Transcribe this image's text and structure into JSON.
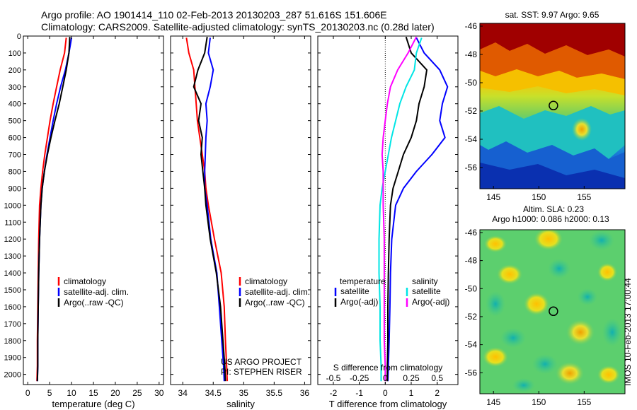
{
  "header": {
    "line1": "Argo profile: AO 1901414_110 02-Feb-2013 20130203_287 51.616S 151.606E",
    "line2": "Climatology: CARS2009. Satellite-adjusted climatology: synTS_20130203.nc (0.28d later)"
  },
  "colors": {
    "climatology": "#ff0000",
    "satellite": "#0000ff",
    "argo": "#000000",
    "sat_diff_temp": "#00e5e5",
    "argo_diff_sal": "#ff00ff"
  },
  "project_note": {
    "line1": "US ARGO PROJECT",
    "line2": "PI: STEPHEN RISER"
  },
  "side_label": "IMOS 10-Feb-2013 17:00:44",
  "chart_data": [
    {
      "type": "line",
      "id": "temperature",
      "xlabel": "temperature (deg C)",
      "ylabel": "",
      "xlim": [
        -1,
        31
      ],
      "ylim": [
        0,
        2060
      ],
      "y_reversed": true,
      "x_ticks": [
        0,
        5,
        10,
        15,
        20,
        25,
        30
      ],
      "y_ticks": [
        0,
        100,
        200,
        300,
        400,
        500,
        600,
        700,
        800,
        900,
        1000,
        1100,
        1200,
        1300,
        1400,
        1500,
        1600,
        1700,
        1800,
        1900,
        2000
      ],
      "legend": [
        "climatology",
        "satellite-adj. clim.",
        "Argo(..raw -QC)"
      ],
      "series": [
        {
          "name": "climatology",
          "color": "#ff0000",
          "x": [
            8.8,
            8.4,
            7.4,
            6.6,
            5.8,
            5.1,
            4.5,
            3.9,
            3.4,
            3.0,
            2.7,
            2.5,
            2.4,
            2.3,
            2.2,
            2.2,
            2.1
          ],
          "y": [
            10,
            100,
            200,
            300,
            400,
            500,
            600,
            700,
            800,
            900,
            1000,
            1200,
            1400,
            1600,
            1800,
            1950,
            2040
          ]
        },
        {
          "name": "satellite-adj. clim.",
          "color": "#0000ff",
          "x": [
            10.0,
            9.4,
            8.6,
            7.5,
            6.6,
            5.8,
            5.1,
            4.4,
            3.8,
            3.3,
            3.0,
            2.7,
            2.5,
            2.4,
            2.3,
            2.3,
            2.2
          ],
          "y": [
            10,
            100,
            200,
            300,
            400,
            500,
            600,
            700,
            800,
            900,
            1000,
            1200,
            1400,
            1600,
            1800,
            1950,
            2040
          ]
        },
        {
          "name": "Argo(..raw -QC)",
          "color": "#000000",
          "x": [
            9.6,
            9.4,
            8.8,
            8.0,
            7.2,
            6.2,
            5.3,
            4.5,
            3.8,
            3.3,
            3.0,
            2.7,
            2.5,
            2.4,
            2.3,
            2.3,
            2.2
          ],
          "y": [
            5,
            100,
            200,
            300,
            400,
            500,
            600,
            700,
            800,
            900,
            1000,
            1200,
            1400,
            1600,
            1800,
            1950,
            2040
          ]
        }
      ]
    },
    {
      "type": "line",
      "id": "salinity",
      "xlabel": "salinity",
      "ylabel": "",
      "xlim": [
        33.8,
        36.1
      ],
      "ylim": [
        0,
        2060
      ],
      "y_reversed": true,
      "x_ticks": [
        34,
        34.5,
        35,
        35.5,
        36
      ],
      "x_tick_labels": [
        "34",
        "34.5",
        "35",
        "35.5",
        "36"
      ],
      "legend": [
        "climatology",
        "satellite-adj. clim.",
        "Argo(..raw -QC)"
      ],
      "series": [
        {
          "name": "climatology",
          "color": "#ff0000",
          "x": [
            34.06,
            34.1,
            34.18,
            34.2,
            34.22,
            34.24,
            34.28,
            34.32,
            34.36,
            34.38,
            34.42,
            34.52,
            34.63,
            34.68,
            34.7,
            34.72,
            34.73
          ],
          "y": [
            10,
            100,
            200,
            300,
            400,
            500,
            600,
            700,
            800,
            900,
            1000,
            1200,
            1400,
            1600,
            1800,
            1950,
            2040
          ]
        },
        {
          "name": "satellite-adj. clim.",
          "color": "#0000ff",
          "x": [
            34.45,
            34.42,
            34.5,
            34.45,
            34.38,
            34.4,
            34.38,
            34.37,
            34.36,
            34.36,
            34.4,
            34.46,
            34.56,
            34.6,
            34.64,
            34.67,
            34.68
          ],
          "y": [
            10,
            100,
            200,
            300,
            400,
            500,
            600,
            700,
            800,
            900,
            1000,
            1200,
            1400,
            1600,
            1800,
            1950,
            2040
          ]
        },
        {
          "name": "Argo(..raw -QC)",
          "color": "#000000",
          "x": [
            34.4,
            34.36,
            34.25,
            34.18,
            34.3,
            34.26,
            34.32,
            34.3,
            34.33,
            34.36,
            34.38,
            34.45,
            34.55,
            34.62,
            34.66,
            34.69,
            34.7
          ],
          "y": [
            5,
            100,
            200,
            300,
            400,
            500,
            600,
            700,
            800,
            900,
            1000,
            1200,
            1400,
            1600,
            1800,
            1950,
            2040
          ]
        }
      ]
    },
    {
      "type": "line",
      "id": "differences",
      "xlabel": "T difference from climatology",
      "xlim": [
        -2.6,
        2.8
      ],
      "x_ticks": [
        -2,
        -1,
        0,
        1,
        2
      ],
      "x2label": "S difference from climatology",
      "x2lim": [
        -0.65,
        0.7
      ],
      "x2_ticks": [
        -0.5,
        -0.25,
        0,
        0.25,
        0.5
      ],
      "x2_tick_labels": [
        "-0.5",
        "-0.25",
        "0",
        "0.25",
        "0.5"
      ],
      "ylim": [
        0,
        2060
      ],
      "y_reversed": true,
      "legend_titles": [
        "temperature",
        "salinity"
      ],
      "legend": [
        "satellite",
        "Argo(-adj)",
        "satellite",
        "Argo(-adj)"
      ],
      "series": [
        {
          "name": "satellite",
          "group": "temperature",
          "color": "#0000ff",
          "x": [
            1.2,
            1.5,
            2.1,
            2.4,
            2.2,
            2.1,
            2.3,
            1.8,
            1.2,
            0.7,
            0.4,
            0.25,
            0.2,
            0.18,
            0.15,
            0.12,
            0.1
          ],
          "y": [
            10,
            100,
            200,
            300,
            400,
            500,
            600,
            700,
            800,
            900,
            1000,
            1200,
            1400,
            1600,
            1800,
            1950,
            2040
          ]
        },
        {
          "name": "Argo(-adj)",
          "group": "temperature",
          "color": "#000000",
          "x": [
            0.8,
            1.0,
            1.6,
            1.5,
            1.3,
            1.2,
            1.0,
            0.7,
            0.5,
            0.3,
            0.2,
            0.15,
            0.12,
            0.1,
            0.1,
            0.08,
            0.08
          ],
          "y": [
            5,
            100,
            200,
            300,
            400,
            500,
            600,
            700,
            800,
            900,
            1000,
            1200,
            1400,
            1600,
            1800,
            1950,
            2040
          ]
        },
        {
          "name": "satellite",
          "group": "salinity",
          "color": "#00e5e5",
          "x": [
            0.35,
            0.3,
            0.28,
            0.2,
            0.14,
            0.1,
            0.06,
            0.03,
            0.0,
            -0.03,
            -0.05,
            -0.06,
            -0.06,
            -0.05,
            -0.05,
            -0.04,
            -0.04
          ],
          "y": [
            10,
            100,
            200,
            300,
            400,
            500,
            600,
            700,
            800,
            900,
            1000,
            1200,
            1400,
            1600,
            1800,
            1950,
            2040
          ]
        },
        {
          "name": "Argo(-adj)",
          "group": "salinity",
          "color": "#ff00ff",
          "x": [
            0.3,
            0.22,
            0.12,
            0.05,
            0.02,
            0.0,
            -0.02,
            -0.03,
            -0.02,
            -0.02,
            -0.02,
            -0.01,
            -0.01,
            -0.01,
            -0.01,
            0.0,
            0.0
          ],
          "y": [
            5,
            100,
            200,
            300,
            400,
            500,
            600,
            700,
            800,
            900,
            1000,
            1200,
            1400,
            1600,
            1800,
            1950,
            2040
          ]
        }
      ]
    },
    {
      "type": "heatmap",
      "id": "sst_map",
      "title": "sat. SST: 9.97  Argo: 9.65",
      "xlim": [
        143.5,
        159.5
      ],
      "ylim": [
        -57.5,
        -45.8
      ],
      "x_ticks": [
        145,
        150,
        155
      ],
      "y_ticks": [
        -46,
        -48,
        -50,
        -52,
        -54,
        -56
      ],
      "marker": {
        "lon": 151.606,
        "lat": -51.616
      }
    },
    {
      "type": "heatmap",
      "id": "sla_map",
      "title": "Altim. SLA: 0.23",
      "subtitle": "Argo h1000: 0.086 h2000: 0.13",
      "xlim": [
        143.5,
        159.5
      ],
      "ylim": [
        -57.5,
        -45.8
      ],
      "x_ticks": [
        145,
        150,
        155
      ],
      "y_ticks": [
        -46,
        -48,
        -50,
        -52,
        -54,
        -56
      ],
      "marker": {
        "lon": 151.606,
        "lat": -51.616
      }
    }
  ]
}
